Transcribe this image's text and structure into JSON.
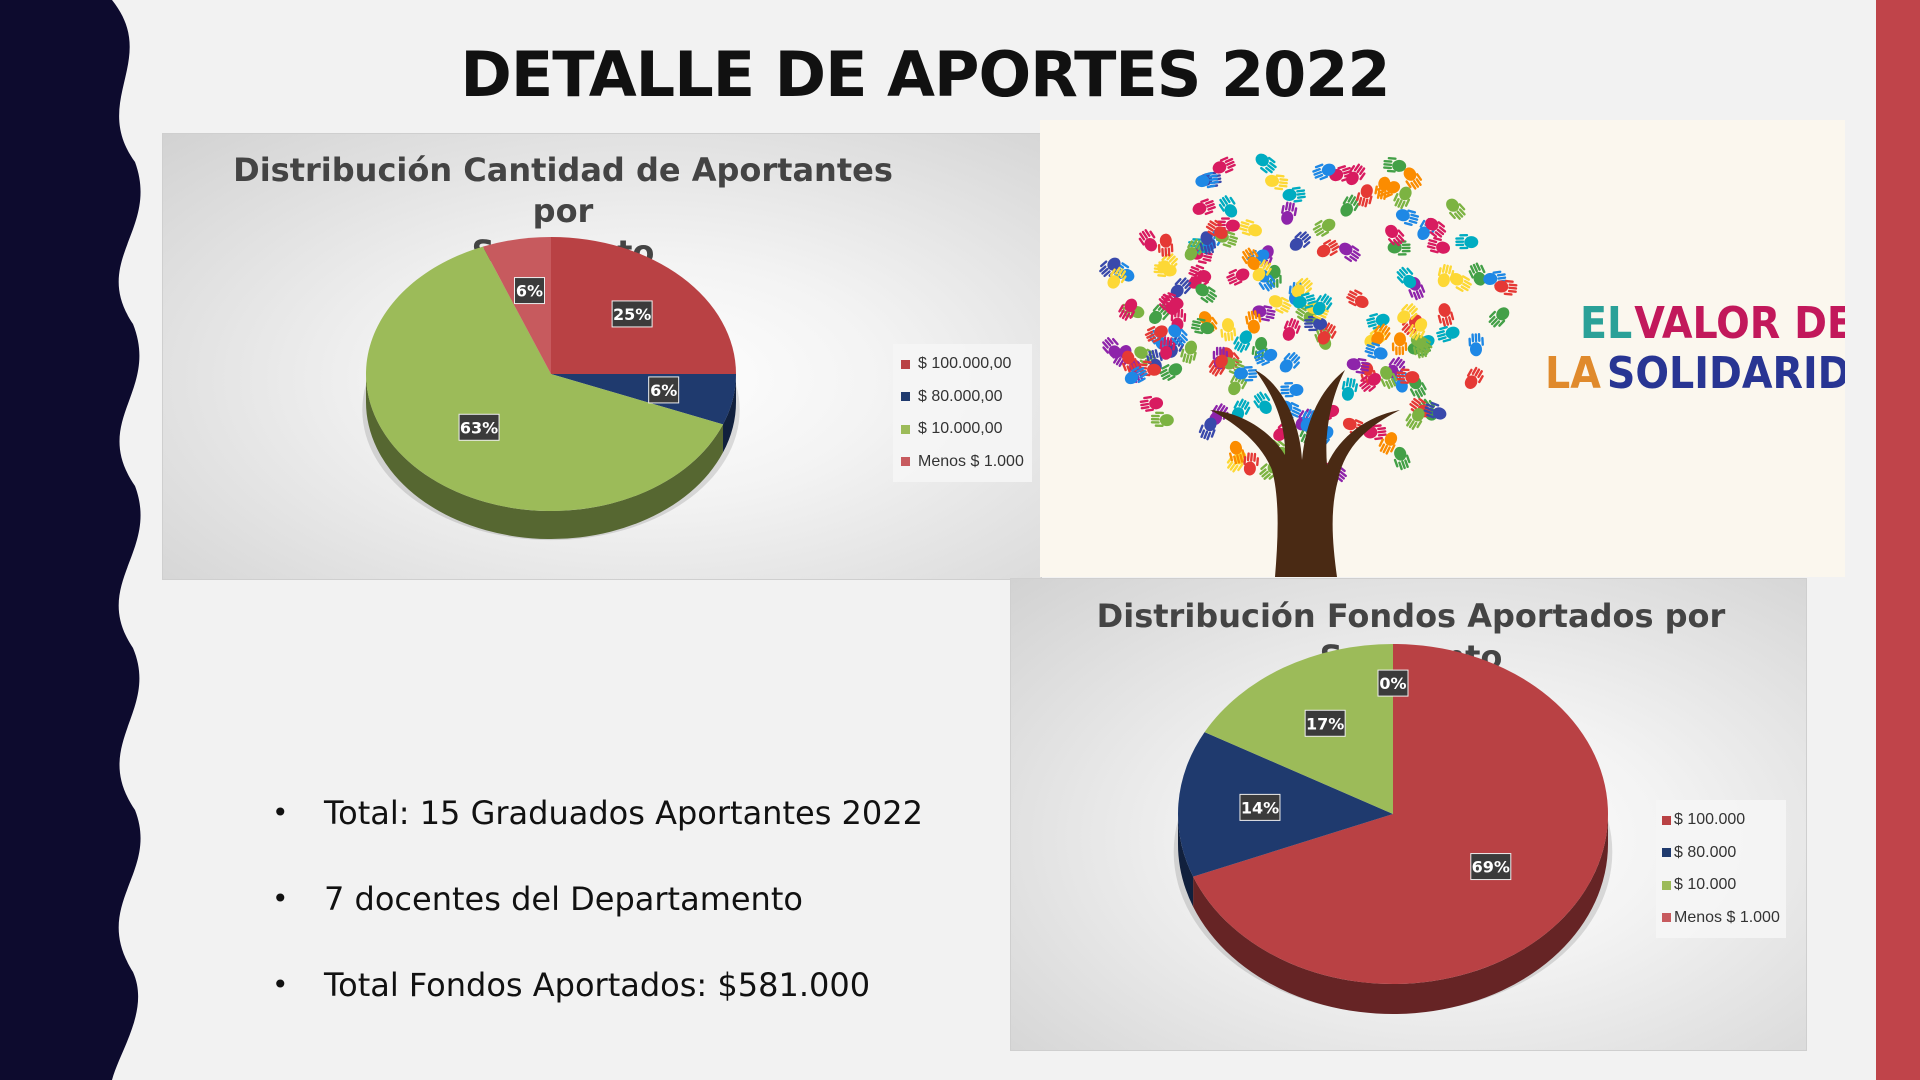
{
  "slide": {
    "title": "DETALLE DE APORTES 2022",
    "colors": {
      "navy": "#0d0b2e",
      "accent_red": "#c0444a",
      "background": "#f2f2f2"
    }
  },
  "bullets": [
    "Total: 15 Graduados Aportantes 2022",
    "7 docentes del Departamento",
    "Total Fondos Aportados: $581.000"
  ],
  "image": {
    "icon": "tree-of-hands-icon",
    "text_line1_a": "EL",
    "text_line1_b": "VALOR DE",
    "text_line2_a": "LA",
    "text_line2_b": "SOLIDARIDAD"
  },
  "chart_data": [
    {
      "type": "pie",
      "style": "3d",
      "title": "Distribución Cantidad de Aportantes por Segmento",
      "title_lines": [
        "Distribución Cantidad de Aportantes por",
        "Segmento"
      ],
      "categories": [
        "$ 100.000,00",
        "$ 80.000,00",
        "$ 10.000,00",
        "Menos $ 1.000"
      ],
      "values": [
        25,
        6,
        63,
        6
      ],
      "labels": [
        "25%",
        "6%",
        "63%",
        "6%"
      ],
      "colors": [
        "#b94144",
        "#1f3a6e",
        "#9cbb59",
        "#c75a5e"
      ],
      "legend": "right"
    },
    {
      "type": "pie",
      "style": "3d",
      "title": "Distribución Fondos Aportados por Segmento",
      "title_lines": [
        "Distribución Fondos Aportados por",
        "Segmento"
      ],
      "categories": [
        "$ 100.000",
        "$ 80.000",
        "$ 10.000",
        "Menos $ 1.000"
      ],
      "values": [
        69,
        14,
        17,
        0
      ],
      "labels": [
        "69%",
        "14%",
        "17%",
        "0%"
      ],
      "colors": [
        "#b94144",
        "#1f3a6e",
        "#9cbb59",
        "#c75a5e"
      ],
      "legend": "right"
    }
  ]
}
